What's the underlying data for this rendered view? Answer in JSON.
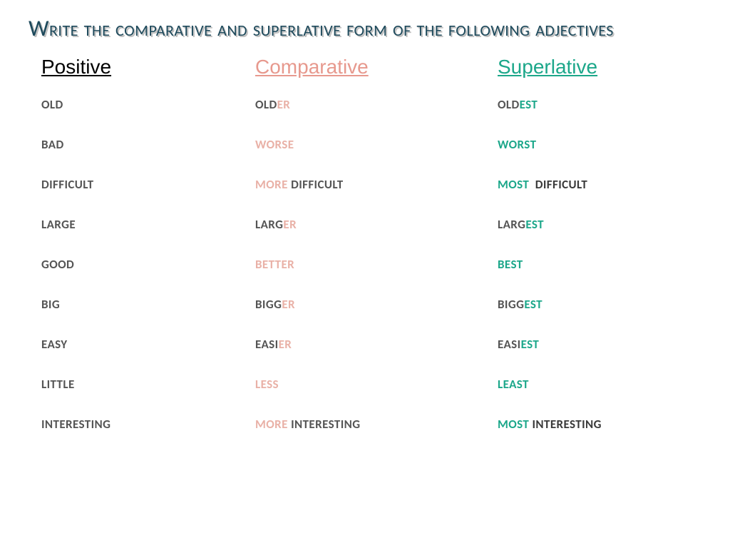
{
  "title": "Write the comparative and superlative form of the following adjectives",
  "columns": {
    "positive": {
      "label": "Positive",
      "color": "#000000"
    },
    "comparative": {
      "label": "Comparative",
      "color": "#e7998e"
    },
    "superlative": {
      "label": "Superlative",
      "color": "#1ca78a"
    }
  },
  "colors": {
    "base": "#555555",
    "comp_accent": "#e9b1a7",
    "sup_accent": "#1ca78a",
    "dark": "#3a3a3a"
  },
  "rows": [
    {
      "positive": "OLD",
      "comp_stem": "OLD",
      "comp_suf": "ER",
      "sup_stem": "OLD",
      "sup_suf": "EST"
    },
    {
      "positive": "BAD",
      "comp_stem": "",
      "comp_suf": "WORSE",
      "sup_stem": "",
      "sup_suf": "WORST"
    },
    {
      "positive": "DIFFICULT",
      "comp_stem": "",
      "comp_suf": "MORE",
      "comp_tail": " DIFFICULT",
      "sup_stem": "",
      "sup_suf": "MOST",
      "sup_tail": "  DIFFICULT"
    },
    {
      "positive": "LARGE",
      "comp_stem": "LARG",
      "comp_suf": "ER",
      "sup_stem": "LARG",
      "sup_suf": "EST"
    },
    {
      "positive": "GOOD",
      "comp_stem": "",
      "comp_suf": "BETTER",
      "sup_stem": "",
      "sup_suf": "BEST"
    },
    {
      "positive": "BIG",
      "comp_stem": "BIGG",
      "comp_suf": "ER",
      "sup_stem": "BIGG",
      "sup_suf": "EST"
    },
    {
      "positive": "EASY",
      "comp_stem": "EASI",
      "comp_suf": "ER",
      "sup_stem": "EASI",
      "sup_suf": "EST"
    },
    {
      "positive": "LITTLE",
      "comp_stem": "",
      "comp_suf": "LESS",
      "sup_stem": "",
      "sup_suf": "LEAST"
    },
    {
      "positive": "INTERESTING",
      "comp_stem": "",
      "comp_suf": "MORE",
      "comp_tail": " INTERESTING",
      "sup_stem": "",
      "sup_suf": "MOST",
      "sup_tail": " INTERESTING"
    }
  ]
}
